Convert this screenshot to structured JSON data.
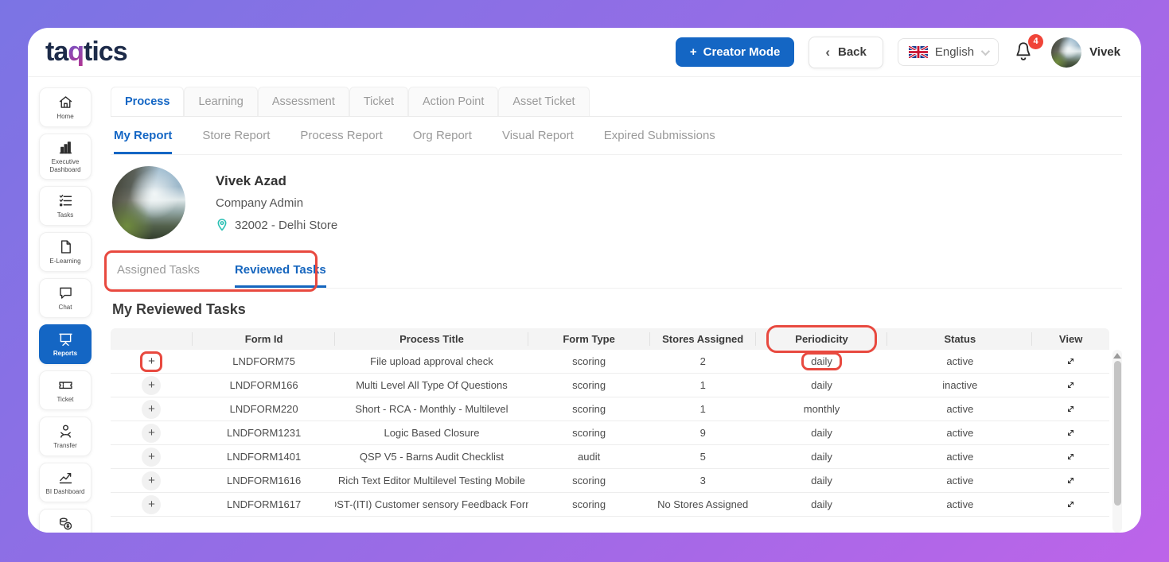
{
  "app": {
    "logo_text": "taqtics"
  },
  "header": {
    "creator_mode_label": "Creator Mode",
    "back_label": "Back",
    "language": {
      "label": "English"
    },
    "notifications": {
      "count": "4"
    },
    "user": {
      "name": "Vivek"
    }
  },
  "sidebar": {
    "items": [
      {
        "label": "Home",
        "icon": "home-icon",
        "active": false
      },
      {
        "label": "Executive Dashboard",
        "icon": "bar-chart-icon",
        "active": false
      },
      {
        "label": "Tasks",
        "icon": "checklist-icon",
        "active": false
      },
      {
        "label": "E-Learning",
        "icon": "document-icon",
        "active": false
      },
      {
        "label": "Chat",
        "icon": "chat-bubble-icon",
        "active": false
      },
      {
        "label": "Reports",
        "icon": "presentation-board-icon",
        "active": true
      },
      {
        "label": "Ticket",
        "icon": "ticket-icon",
        "active": false
      },
      {
        "label": "Transfer",
        "icon": "person-icon",
        "active": false
      },
      {
        "label": "BI Dashboard",
        "icon": "trend-chart-icon",
        "active": false
      },
      {
        "label": "Asset",
        "icon": "coins-icon",
        "active": false
      }
    ]
  },
  "tabs": {
    "items": [
      {
        "label": "Process",
        "active": true
      },
      {
        "label": "Learning",
        "active": false
      },
      {
        "label": "Assessment",
        "active": false
      },
      {
        "label": "Ticket",
        "active": false
      },
      {
        "label": "Action Point",
        "active": false
      },
      {
        "label": "Asset Ticket",
        "active": false
      }
    ]
  },
  "subtabs": {
    "items": [
      {
        "label": "My Report",
        "active": true
      },
      {
        "label": "Store Report",
        "active": false
      },
      {
        "label": "Process Report",
        "active": false
      },
      {
        "label": "Org Report",
        "active": false
      },
      {
        "label": "Visual Report",
        "active": false
      },
      {
        "label": "Expired Submissions",
        "active": false
      }
    ]
  },
  "profile": {
    "name": "Vivek Azad",
    "role": "Company Admin",
    "store": "32002 - Delhi Store"
  },
  "task_tabs": {
    "items": [
      {
        "label": "Assigned Tasks",
        "active": false
      },
      {
        "label": "Reviewed Tasks",
        "active": true
      }
    ],
    "annotated": true
  },
  "section": {
    "title": "My Reviewed Tasks"
  },
  "table": {
    "columns": [
      "",
      "Form Id",
      "Process Title",
      "Form Type",
      "Stores Assigned",
      "Periodicity",
      "Status",
      "View"
    ],
    "annotated_column": "Periodicity",
    "rows": [
      {
        "form_id": "LNDFORM75",
        "process_title": "File upload approval check",
        "form_type": "scoring",
        "stores_assigned": "2",
        "periodicity": "daily",
        "status": "active",
        "annotate_expand": true,
        "annotate_periodicity": true
      },
      {
        "form_id": "LNDFORM166",
        "process_title": "Multi Level All Type Of Questions",
        "form_type": "scoring",
        "stores_assigned": "1",
        "periodicity": "daily",
        "status": "inactive",
        "annotate_expand": false,
        "annotate_periodicity": false
      },
      {
        "form_id": "LNDFORM220",
        "process_title": "Short - RCA - Monthly - Multilevel",
        "form_type": "scoring",
        "stores_assigned": "1",
        "periodicity": "monthly",
        "status": "active",
        "annotate_expand": false,
        "annotate_periodicity": false
      },
      {
        "form_id": "LNDFORM1231",
        "process_title": "Logic Based Closure",
        "form_type": "scoring",
        "stores_assigned": "9",
        "periodicity": "daily",
        "status": "active",
        "annotate_expand": false,
        "annotate_periodicity": false
      },
      {
        "form_id": "LNDFORM1401",
        "process_title": "QSP V5 - Barns Audit Checklist",
        "form_type": "audit",
        "stores_assigned": "5",
        "periodicity": "daily",
        "status": "active",
        "annotate_expand": false,
        "annotate_periodicity": false
      },
      {
        "form_id": "LNDFORM1616",
        "process_title": "Rich Text Editor Multilevel Testing Mobile",
        "form_type": "scoring",
        "stores_assigned": "3",
        "periodicity": "daily",
        "status": "active",
        "annotate_expand": false,
        "annotate_periodicity": false
      },
      {
        "form_id": "LNDFORM1617",
        "process_title": "DST-(ITI) Customer sensory Feedback Form",
        "form_type": "scoring",
        "stores_assigned": "No Stores Assigned",
        "periodicity": "daily",
        "status": "active",
        "annotate_expand": false,
        "annotate_periodicity": false
      }
    ]
  },
  "colors": {
    "accent_blue": "#1466c4",
    "annotation_red": "#e8493f",
    "badge_red": "#f04438",
    "background_gradient_start": "#7b74e4",
    "background_gradient_end": "#bd64e9"
  }
}
